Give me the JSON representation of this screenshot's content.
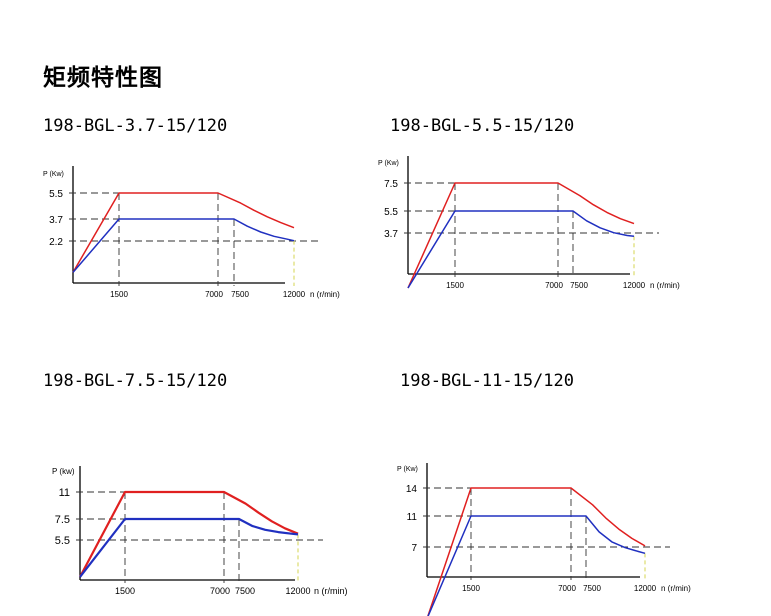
{
  "page": {
    "title": "矩频特性图"
  },
  "models": [
    "198-BGL-3.7-15/120",
    "198-BGL-5.5-15/120",
    "198-BGL-7.5-15/120",
    "198-BGL-11-15/120"
  ],
  "colors": {
    "upper_curve": "#e02020",
    "lower_curve": "#2030c0",
    "guide": "#333333",
    "end_guide": "#d8d860"
  },
  "chart_data": [
    {
      "type": "line",
      "title": "198-BGL-3.7-15/120",
      "ylabel": "P (Kw)",
      "xlabel": "n (r/min)",
      "xlim": [
        0,
        13500
      ],
      "ylim": [
        0,
        7.4
      ],
      "ytick_labels": [
        "5.5",
        "3.7",
        "2.2"
      ],
      "xtick_labels": [
        "1500",
        "7000",
        "7500",
        "12000"
      ],
      "series": [
        {
          "x": [
            0,
            1500,
            7000,
            8000,
            9000,
            10000,
            11000,
            12000
          ],
          "values": [
            0,
            5.5,
            5.5,
            4.8,
            4.3,
            3.85,
            3.45,
            3.1
          ]
        },
        {
          "x": [
            0,
            1500,
            7500,
            8500,
            9500,
            10500,
            11500,
            12000
          ],
          "values": [
            0,
            3.7,
            3.7,
            3.2,
            2.8,
            2.5,
            2.3,
            2.2
          ]
        }
      ]
    },
    {
      "type": "line",
      "title": "198-BGL-5.5-15/120",
      "ylabel": "P (Kw)",
      "xlabel": "n (r/min)",
      "xlim": [
        0,
        13500
      ],
      "ylim": [
        0,
        9.5
      ],
      "ytick_labels": [
        "7.5",
        "5.5",
        "3.7"
      ],
      "xtick_labels": [
        "1500",
        "7000",
        "7500",
        "12000"
      ],
      "series": [
        {
          "x": [
            0,
            1500,
            7000,
            8000,
            9000,
            10000,
            11000,
            12000
          ],
          "values": [
            0,
            7.5,
            7.5,
            6.6,
            5.95,
            5.4,
            4.95,
            4.6
          ]
        },
        {
          "x": [
            0,
            1500,
            7500,
            8500,
            9500,
            10500,
            11500,
            12000
          ],
          "values": [
            0,
            5.5,
            5.5,
            4.8,
            4.3,
            3.95,
            3.75,
            3.7
          ]
        }
      ]
    },
    {
      "type": "line",
      "title": "198-BGL-7.5-15/120",
      "ylabel": "P (kw)",
      "xlabel": "n (r/min)",
      "xlim": [
        0,
        13500
      ],
      "ylim": [
        0,
        13.5
      ],
      "ytick_labels": [
        "11",
        "7.5",
        "5.5"
      ],
      "xtick_labels": [
        "1500",
        "7000",
        "7500",
        "12000"
      ],
      "series": [
        {
          "x": [
            0,
            1500,
            7000,
            8000,
            9000,
            10000,
            11000,
            12000
          ],
          "values": [
            0,
            11,
            11,
            9.5,
            8.3,
            7.2,
            6.3,
            5.6
          ]
        },
        {
          "x": [
            0,
            1500,
            7500,
            8500,
            9500,
            10500,
            11500,
            12000
          ],
          "values": [
            0,
            7.5,
            7.5,
            6.6,
            6.1,
            5.8,
            5.6,
            5.5
          ]
        }
      ]
    },
    {
      "type": "line",
      "title": "198-BGL-11-15/120",
      "ylabel": "P (Kw)",
      "xlabel": "n (r/min)",
      "xlim": [
        0,
        13500
      ],
      "ylim": [
        0,
        17.5
      ],
      "ytick_labels": [
        "14",
        "11",
        "7"
      ],
      "xtick_labels": [
        "1500",
        "7000",
        "7500",
        "12000"
      ],
      "series": [
        {
          "x": [
            0,
            1500,
            7000,
            8000,
            9000,
            10000,
            11000,
            12000
          ],
          "values": [
            0,
            14,
            14,
            12.2,
            10.8,
            9.6,
            8.6,
            7.8
          ]
        },
        {
          "x": [
            0,
            1500,
            7500,
            8500,
            9500,
            10500,
            11500,
            12000
          ],
          "values": [
            0,
            11,
            11,
            9.3,
            8.2,
            7.6,
            7.2,
            7.0
          ]
        }
      ]
    }
  ]
}
